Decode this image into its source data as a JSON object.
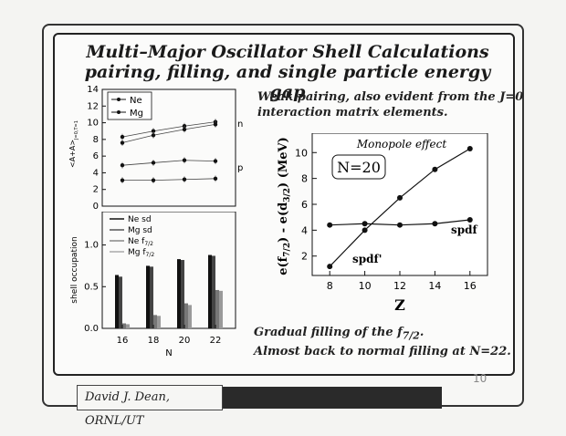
{
  "slide": {
    "title_line1": "Multi–Major Oscillator Shell Calculations",
    "title_line2": "pairing, filling, and single particle energy gap",
    "note_top_line1": "Weak pairing, also evident from the J=0",
    "note_top_line2": "interaction matrix elements.",
    "note_bottom_line1": "Gradual  filling of the f",
    "note_bottom_sub": "7/2",
    "note_bottom_end": ".",
    "note_bottom_line2": "Almost back to normal filling at N=22.",
    "footer_name": "David J. Dean, ORNL/UT",
    "page_number": "10"
  },
  "chart_data": [
    {
      "type": "line",
      "name": "pairing",
      "ylabel": "<A+A>",
      "ylabel_sub": "J=0,T=1",
      "ylim": [
        0,
        14
      ],
      "yticks": [
        "0",
        "2",
        "4",
        "6",
        "8",
        "10",
        "12",
        "14"
      ],
      "x": [
        16,
        18,
        20,
        22
      ],
      "legend": [
        "Ne",
        "Mg"
      ],
      "annotations": [
        "n",
        "p"
      ],
      "series": [
        {
          "name": "Ne n",
          "values": [
            8.3,
            9.0,
            9.6,
            10.1
          ]
        },
        {
          "name": "Mg n",
          "values": [
            7.6,
            8.5,
            9.2,
            9.8
          ]
        },
        {
          "name": "Ne p",
          "values": [
            4.9,
            5.2,
            5.5,
            5.4
          ]
        },
        {
          "name": "Mg p",
          "values": [
            3.1,
            3.1,
            3.2,
            3.3
          ]
        }
      ]
    },
    {
      "type": "bar",
      "name": "shell occupation",
      "xlabel": "N",
      "ylabel": "shell occupation",
      "categories": [
        "16",
        "18",
        "20",
        "22"
      ],
      "ylim": [
        0,
        1.4
      ],
      "yticks": [
        "0.0",
        "0.5",
        "1.0"
      ],
      "legend": [
        {
          "label": "Ne sd",
          "sub": ""
        },
        {
          "label": "Mg sd",
          "sub": ""
        },
        {
          "label": "Ne f",
          "sub": "7/2"
        },
        {
          "label": "Mg f",
          "sub": "7/2"
        }
      ],
      "series": [
        {
          "name": "Ne sd",
          "values": [
            0.64,
            0.75,
            0.83,
            0.88
          ]
        },
        {
          "name": "Mg sd",
          "values": [
            0.62,
            0.74,
            0.82,
            0.87
          ]
        },
        {
          "name": "Ne f7/2",
          "values": [
            0.06,
            0.16,
            0.3,
            0.46
          ]
        },
        {
          "name": "Mg f7/2",
          "values": [
            0.05,
            0.15,
            0.28,
            0.45
          ]
        }
      ]
    },
    {
      "type": "line",
      "name": "monopole",
      "title": "Monopole effect",
      "box_label": "N=20",
      "xlabel": "Z",
      "ylabel": "e(f",
      "ylabel_sub1": "7/2",
      "ylabel_mid": ") - e(d",
      "ylabel_sub2": "3/2",
      "ylabel_end": ") (MeV)",
      "xlim": [
        7,
        17
      ],
      "ylim": [
        0.5,
        11.5
      ],
      "xticks": [
        "8",
        "10",
        "12",
        "14",
        "16"
      ],
      "yticks": [
        "2",
        "4",
        "6",
        "8",
        "10"
      ],
      "x": [
        8,
        10,
        12,
        14,
        16
      ],
      "series": [
        {
          "name": "spdf",
          "values": [
            4.4,
            4.5,
            4.4,
            4.5,
            4.8
          ]
        },
        {
          "name": "spdf'",
          "values": [
            1.2,
            4.0,
            6.5,
            8.7,
            10.3
          ]
        }
      ]
    }
  ]
}
